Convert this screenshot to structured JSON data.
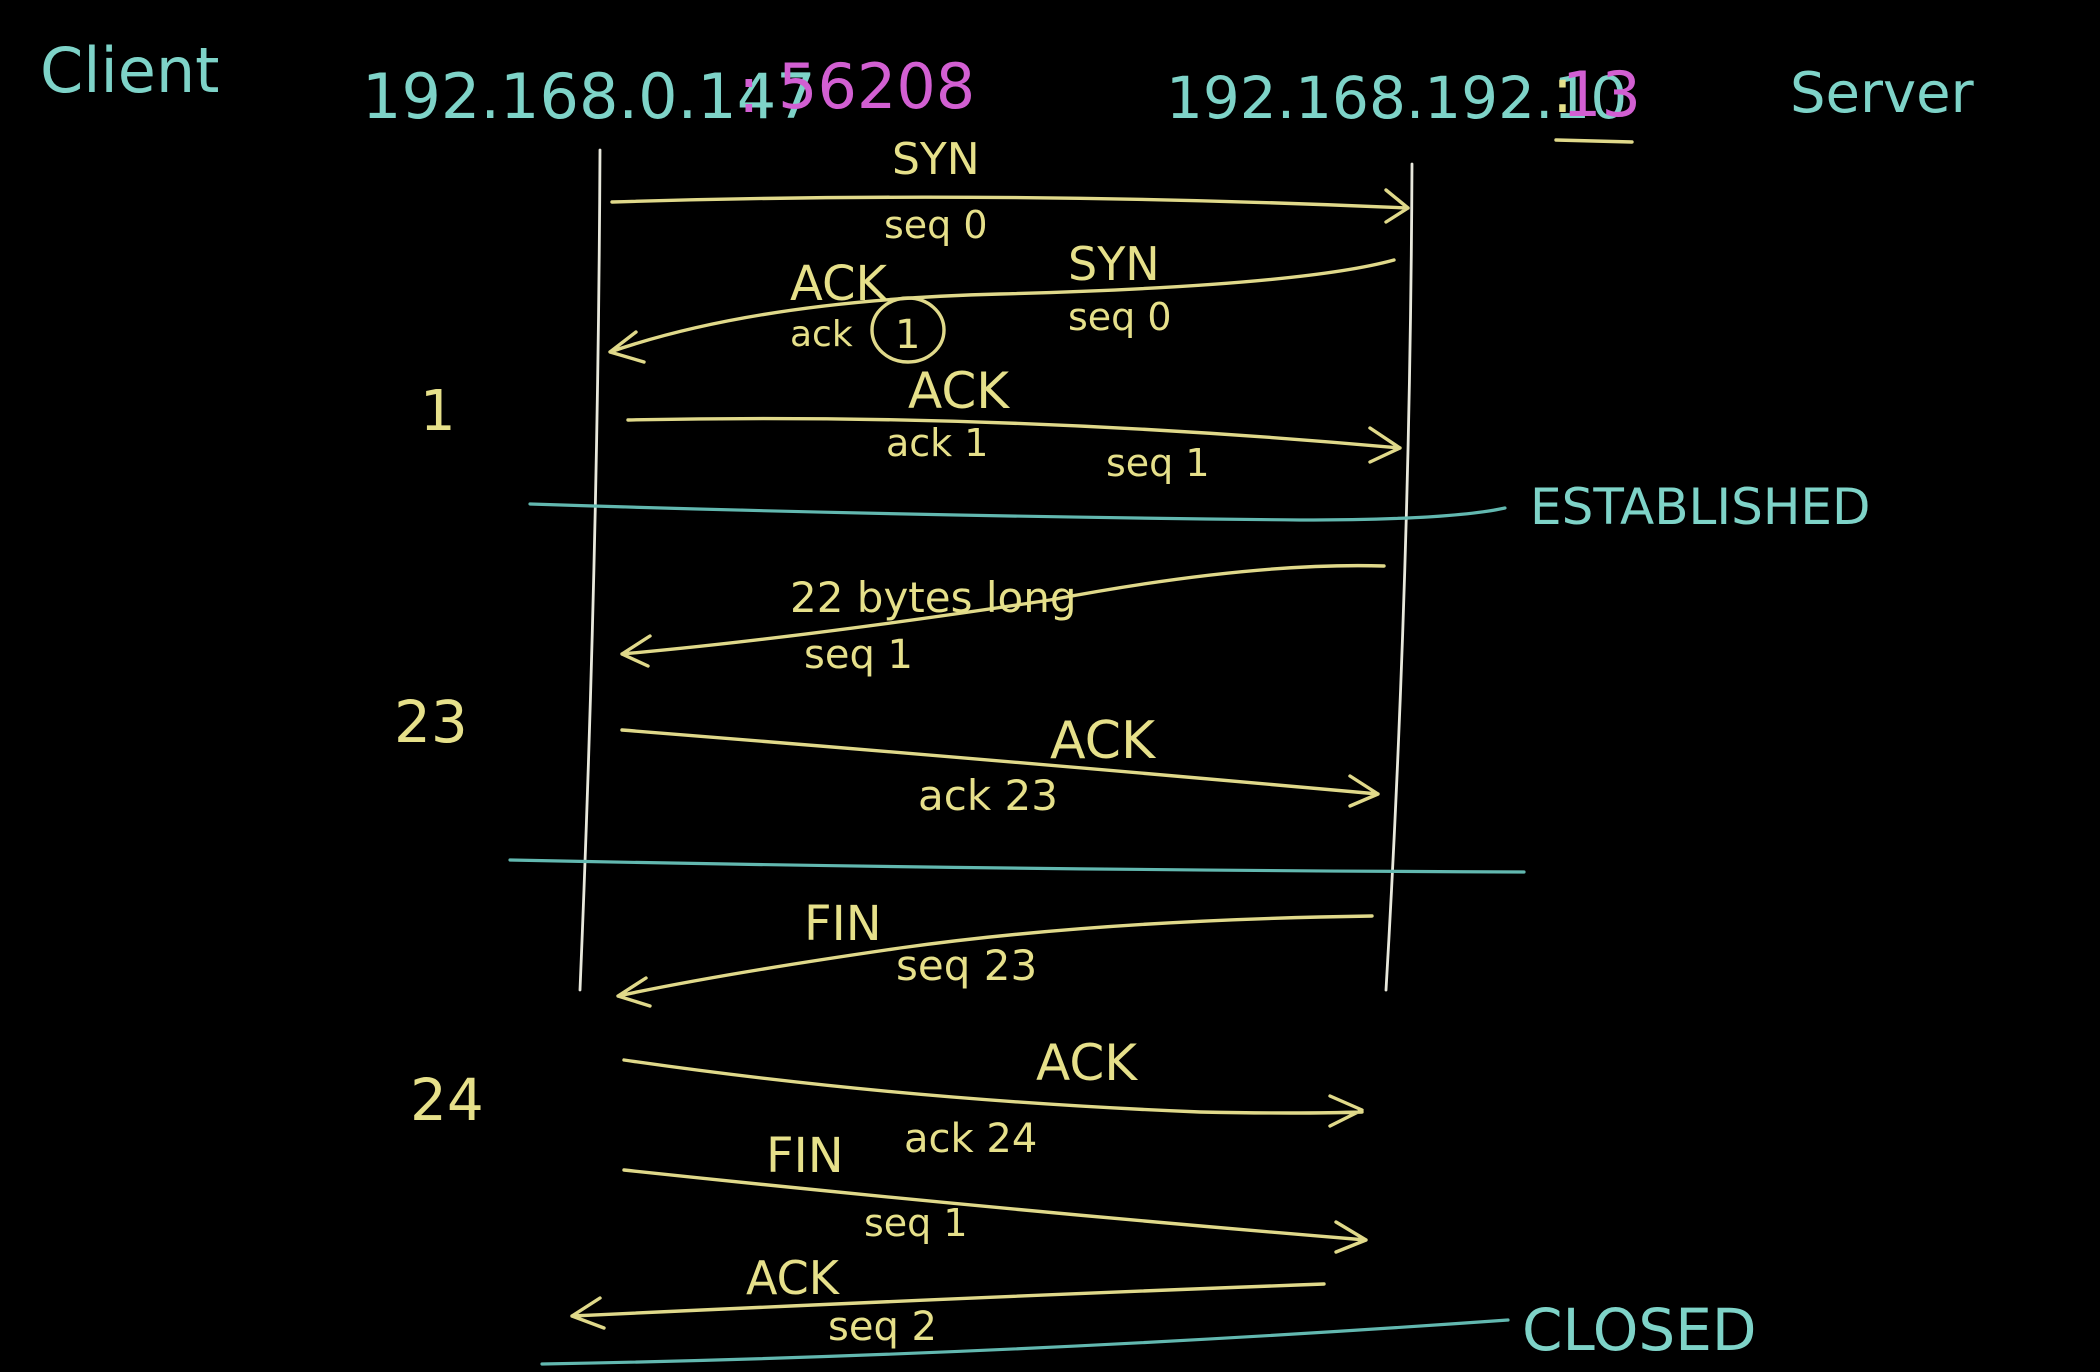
{
  "header": {
    "client_label": "Client",
    "server_label": "Server",
    "client_ip": "192.168.0.147",
    "client_sep": ":",
    "client_port": "56208",
    "server_ip": "192.168.192.10",
    "server_sep": ":",
    "server_port": "13"
  },
  "side_numbers": {
    "n1": "1",
    "n23": "23",
    "n24": "24"
  },
  "states": {
    "established": "ESTABLISHED",
    "closed": "CLOSED"
  },
  "messages": [
    {
      "direction": "client-to-server",
      "above": "SYN",
      "below": "seq 0"
    },
    {
      "direction": "server-to-client",
      "above_left": "ACK",
      "below_left_prefix": "ack",
      "below_left_value": "1",
      "above_right": "SYN",
      "below_right": "seq 0"
    },
    {
      "direction": "client-to-server",
      "above": "ACK",
      "below_left": "ack 1",
      "below_right": "seq 1"
    },
    {
      "direction": "server-to-client",
      "above": "22 bytes long",
      "below": "seq 1"
    },
    {
      "direction": "client-to-server",
      "above": "ACK",
      "below": "ack 23"
    },
    {
      "direction": "server-to-client",
      "above": "FIN",
      "below": "seq 23"
    },
    {
      "direction": "client-to-server",
      "above": "ACK",
      "below": "ack 24"
    },
    {
      "direction": "client-to-server",
      "above": "FIN",
      "below": "seq 1"
    },
    {
      "direction": "server-to-client",
      "above": "ACK",
      "below": "seq 2"
    }
  ],
  "colors": {
    "background": "#000000",
    "teal": "#7ed3c8",
    "yellow": "#e6e08a",
    "magenta": "#d25fd2",
    "lifeline": "#e8e8dc"
  }
}
